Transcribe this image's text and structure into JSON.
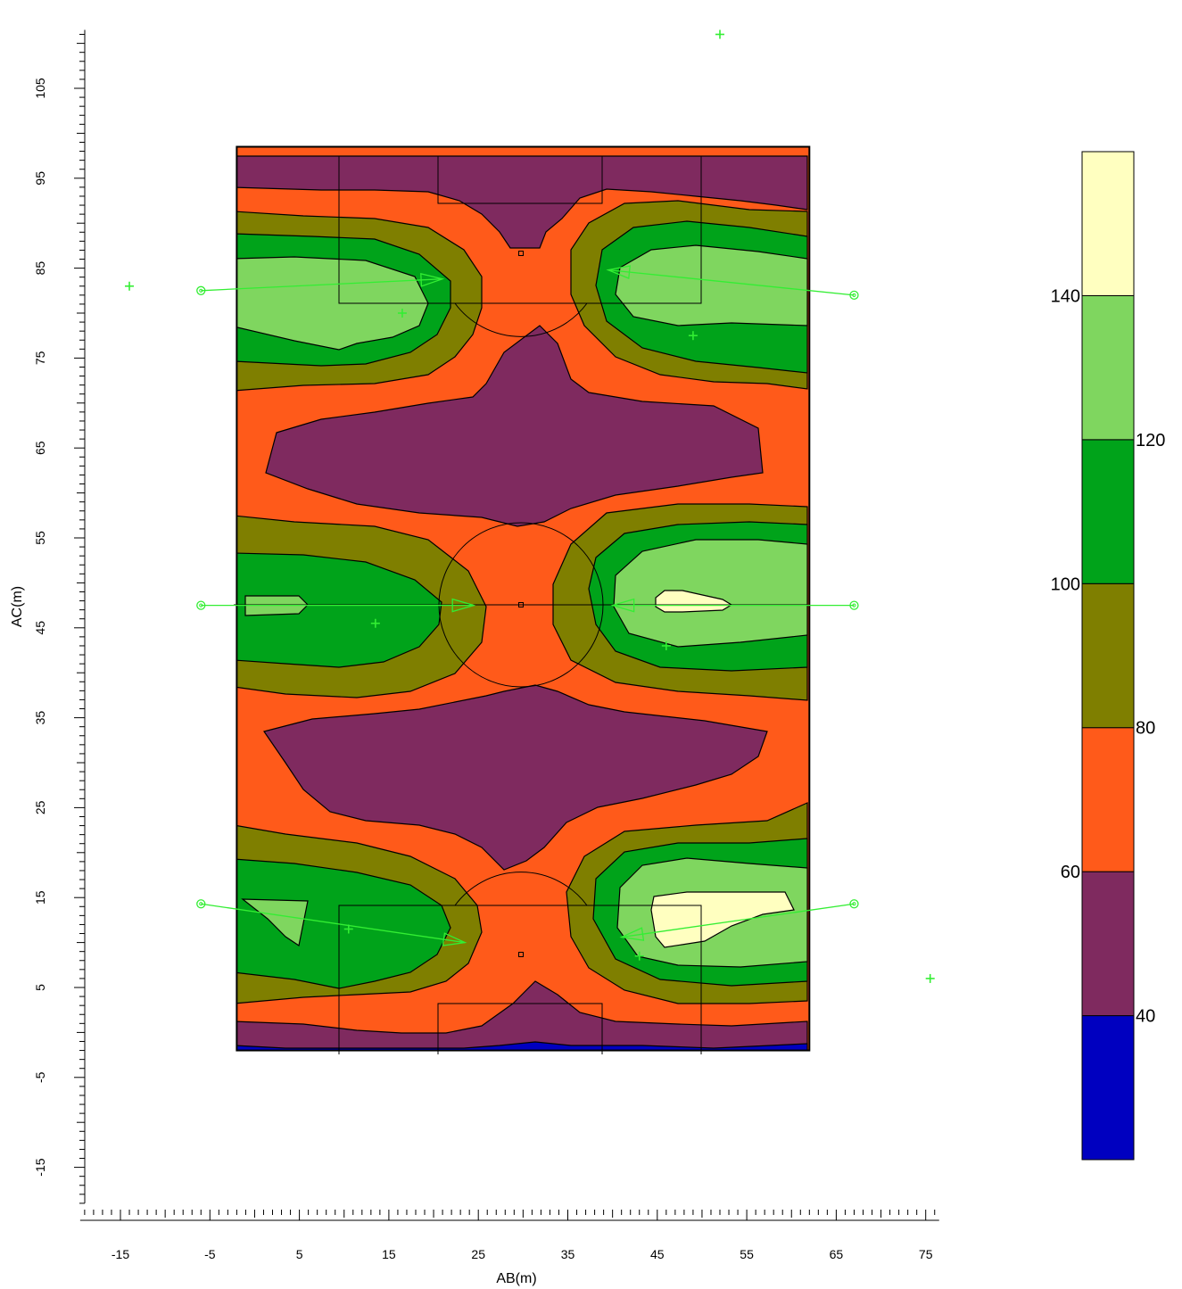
{
  "chart_data": {
    "type": "heatmap",
    "title": "",
    "xlabel": "AB(m)",
    "ylabel": "AC(m)",
    "xlim": [
      -19.5,
      76
    ],
    "ylim": [
      -19,
      111
    ],
    "x_tick_labels": [
      "-15",
      "-5",
      "5",
      "15",
      "25",
      "35",
      "45",
      "55",
      "65",
      "75"
    ],
    "y_tick_labels": [
      "-15",
      "-5",
      "5",
      "15",
      "25",
      "35",
      "45",
      "55",
      "65",
      "75",
      "85",
      "95",
      "105"
    ],
    "field": {
      "x_range": [
        -2,
        62
      ],
      "y_range": [
        -2,
        98.5
      ]
    },
    "colorbar": {
      "levels": [
        20,
        40,
        60,
        80,
        100,
        120,
        140,
        160
      ],
      "labels": [
        "40",
        "60",
        "80",
        "100",
        "120",
        "140"
      ],
      "bands": [
        {
          "range": [
            20,
            40
          ],
          "color": "#0000c0"
        },
        {
          "range": [
            40,
            60
          ],
          "color": "#7f2a5f"
        },
        {
          "range": [
            60,
            80
          ],
          "color": "#ff5a1a"
        },
        {
          "range": [
            80,
            100
          ],
          "color": "#7f7f00"
        },
        {
          "range": [
            100,
            120
          ],
          "color": "#00a31a"
        },
        {
          "range": [
            120,
            140
          ],
          "color": "#7fd65f"
        },
        {
          "range": [
            140,
            160
          ],
          "color": "#ffffc0"
        }
      ]
    },
    "colors": {
      "luminaire": "#33ee33",
      "outline": "#000000"
    },
    "luminaires": [
      {
        "from": [
          -6,
          82.5
        ],
        "to": [
          21,
          83.8
        ]
      },
      {
        "from": [
          67,
          82
        ],
        "to": [
          39.5,
          84.8
        ]
      },
      {
        "from": [
          -6,
          47.5
        ],
        "to": [
          24.5,
          47.5
        ]
      },
      {
        "from": [
          67,
          47.5
        ],
        "to": [
          40,
          47.5
        ]
      },
      {
        "from": [
          -6,
          14.3
        ],
        "to": [
          23.5,
          10
        ]
      },
      {
        "from": [
          67,
          14.3
        ],
        "to": [
          41,
          10.6
        ]
      }
    ],
    "measurement_points": [
      [
        -14,
        83
      ],
      [
        52,
        111
      ],
      [
        16.5,
        80
      ],
      [
        49,
        77.5
      ],
      [
        13.5,
        45.5
      ],
      [
        46,
        43
      ],
      [
        10.5,
        11.5
      ],
      [
        43,
        8.5
      ],
      [
        75.5,
        6
      ]
    ]
  }
}
